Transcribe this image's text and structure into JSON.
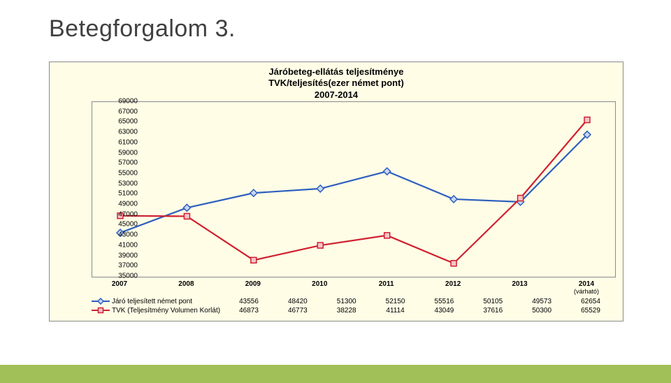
{
  "title": "Betegforgalom 3.",
  "chart": {
    "type": "line",
    "title_line1": "Járóbeteg-ellátás teljesítménye",
    "title_line2": "TVK/teljesítés(ezer német pont)",
    "title_line3": "2007-2014",
    "background_color": "#fffde6",
    "border_color": "#8a8a8a",
    "ylim_min": 35000,
    "ylim_max": 69000,
    "ytick_step": 2000,
    "yticks": [
      35000,
      37000,
      39000,
      41000,
      43000,
      45000,
      47000,
      49000,
      51000,
      53000,
      55000,
      57000,
      59000,
      61000,
      63000,
      65000,
      67000,
      69000
    ],
    "categories": [
      "2007",
      "2008",
      "2009",
      "2010",
      "2011",
      "2012",
      "2013",
      "2014"
    ],
    "category_sub": [
      "",
      "",
      "",
      "",
      "",
      "",
      "",
      "(várható)"
    ],
    "series": [
      {
        "name": "Járó teljesített német pont",
        "color": "#2e5fbf",
        "marker_fill": "#c9d7f3",
        "values": [
          43556,
          48420,
          51300,
          52150,
          55516,
          50105,
          49573,
          62654
        ]
      },
      {
        "name": "TVK (Teljesítmény Volumen Korlát)",
        "color": "#d02030",
        "marker_fill": "#f4c4c9",
        "values": [
          46873,
          46773,
          38228,
          41114,
          43049,
          37616,
          50300,
          65529
        ]
      }
    ],
    "line_width": 2.2,
    "marker_size": 5,
    "tick_fontsize": 10,
    "title_fontsize": 13
  },
  "swatch": {
    "s0": "◆",
    "s1": "□"
  }
}
